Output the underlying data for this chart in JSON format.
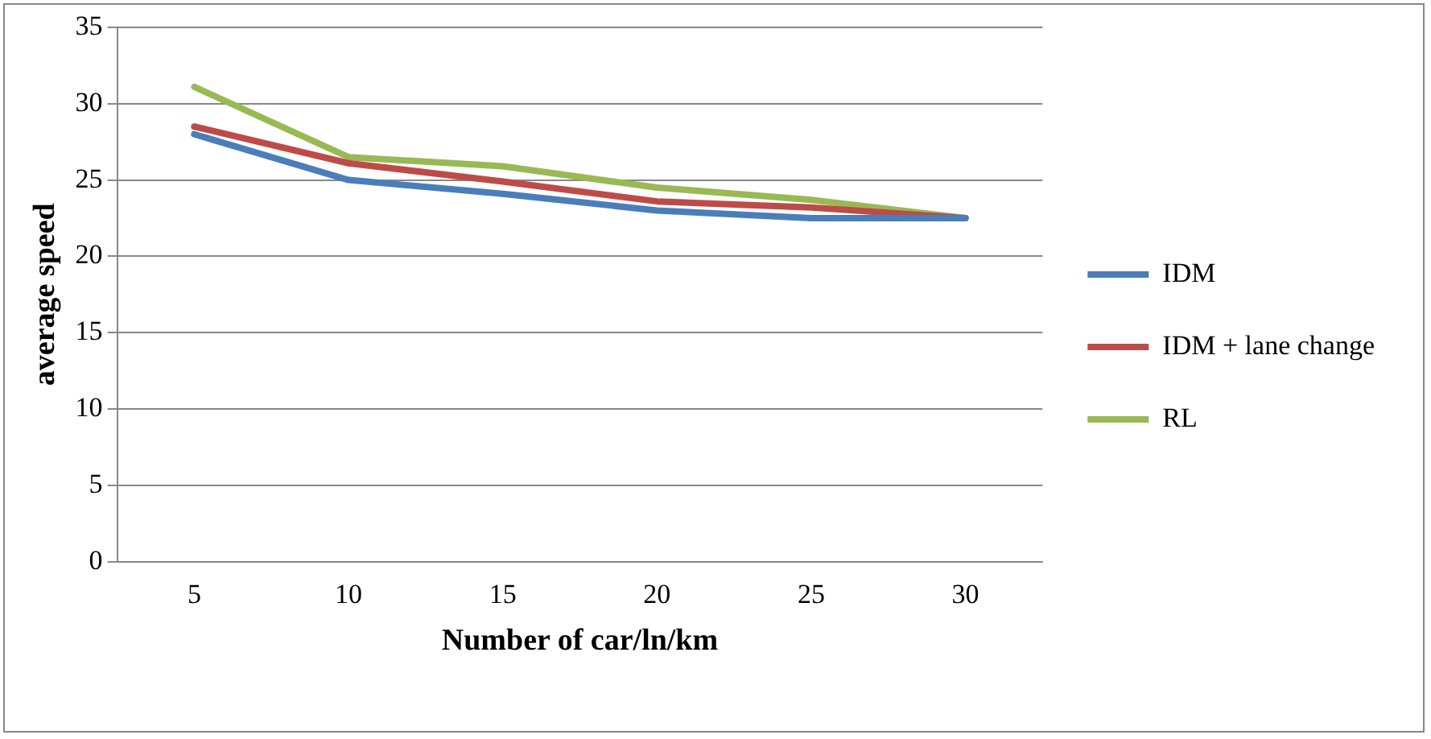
{
  "chart_data": {
    "type": "line",
    "xlabel": "Number of car/ln/km",
    "ylabel": "average speed",
    "categories": [
      "5",
      "10",
      "15",
      "20",
      "25",
      "30"
    ],
    "series": [
      {
        "name": "IDM",
        "color": "#4a7ebb",
        "values": [
          28,
          25,
          24.1,
          23,
          22.5,
          22.5
        ]
      },
      {
        "name": "IDM + lane change",
        "color": "#be4b48",
        "values": [
          28.5,
          26.1,
          24.9,
          23.6,
          23.2,
          22.5
        ]
      },
      {
        "name": "RL",
        "color": "#98b954",
        "values": [
          31.1,
          26.5,
          25.9,
          24.5,
          23.7,
          22.5
        ]
      }
    ],
    "ylim": [
      0,
      35
    ],
    "yticks": [
      0,
      5,
      10,
      15,
      20,
      25,
      30,
      35
    ],
    "grid": "y",
    "legend": "right",
    "marker": "none",
    "line_style": "solid"
  }
}
